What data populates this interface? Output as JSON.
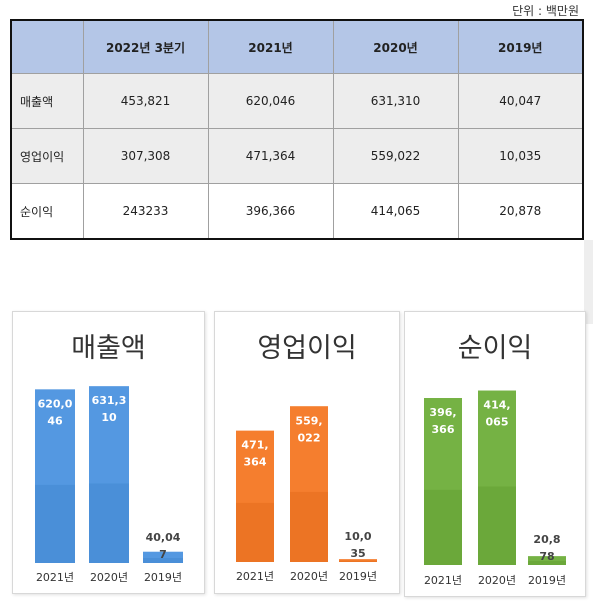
{
  "unit_label": "단위 : 백만원",
  "table": {
    "corner": "",
    "headers": [
      "2022년  3분기",
      "2021년",
      "2020년",
      "2019년"
    ],
    "rows": [
      {
        "label": "매출액",
        "values": [
          "453,821",
          "620,046",
          "631,310",
          "40,047"
        ]
      },
      {
        "label": "영업이익",
        "values": [
          "307,308",
          "471,364",
          "559,022",
          "10,035"
        ]
      },
      {
        "label": "순이익",
        "values": [
          "243233",
          "396,366",
          "414,065",
          "20,878"
        ]
      }
    ]
  },
  "chart_data": [
    {
      "type": "bar",
      "title": "매출액",
      "categories": [
        "2021년",
        "2020년",
        "2019년"
      ],
      "values": [
        620046,
        631310,
        40047
      ],
      "labels": [
        "620,0\n46",
        "631,3\n10",
        "40,04\n7"
      ],
      "color": "#4a8fd8",
      "ylim": [
        0,
        700000
      ]
    },
    {
      "type": "bar",
      "title": "영업이익",
      "categories": [
        "2021년",
        "2020년",
        "2019년"
      ],
      "values": [
        471364,
        559022,
        10035
      ],
      "labels": [
        "471,\n364",
        "559,\n022",
        "10,0\n35"
      ],
      "color": "#ec7424",
      "ylim": [
        0,
        700000
      ]
    },
    {
      "type": "bar",
      "title": "순이익",
      "categories": [
        "2021년",
        "2020년",
        "2019년"
      ],
      "values": [
        396366,
        414065,
        20878
      ],
      "labels": [
        "396,\n366",
        "414,\n065",
        "20,8\n78"
      ],
      "color": "#6ba83a",
      "ylim": [
        0,
        470000
      ]
    }
  ]
}
